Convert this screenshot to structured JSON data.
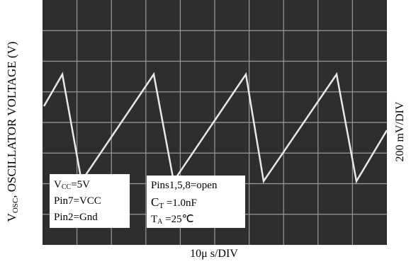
{
  "y_axis": {
    "symbol": "V",
    "symbol_sub": "OSC",
    "label": ", OSCILLATOR VOLTAGE (V)"
  },
  "vertical_scale": "200 mV/DIV",
  "horizontal_scale": "10μ s/DIV",
  "conditions_left": [
    {
      "main": "V",
      "sub": "CC",
      "rest": "=5V"
    },
    {
      "main": "Pin7=VCC"
    },
    {
      "main": "Pin2=Gnd"
    }
  ],
  "conditions_right": [
    {
      "main": "Pins1,5,8=open"
    },
    {
      "main": "C",
      "sub": "T",
      "rest": " =1.0nF"
    },
    {
      "main": "T",
      "sub": "A",
      "rest": " =25℃"
    }
  ]
}
